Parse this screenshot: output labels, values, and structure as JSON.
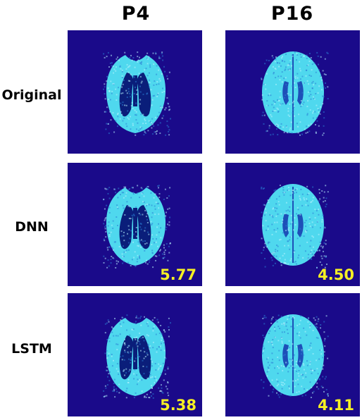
{
  "columns": [
    {
      "label": "P4"
    },
    {
      "label": "P16"
    }
  ],
  "rows": [
    {
      "label": "Original"
    },
    {
      "label": "DNN"
    },
    {
      "label": "LSTM"
    }
  ],
  "scores": {
    "dnn_p4": "5.77",
    "dnn_p16": "4.50",
    "lstm_p4": "5.38",
    "lstm_p16": "4.11"
  },
  "colors": {
    "background": "#1a0a8a",
    "tissue": "#4fd8ee",
    "score": "#f5ef24"
  }
}
